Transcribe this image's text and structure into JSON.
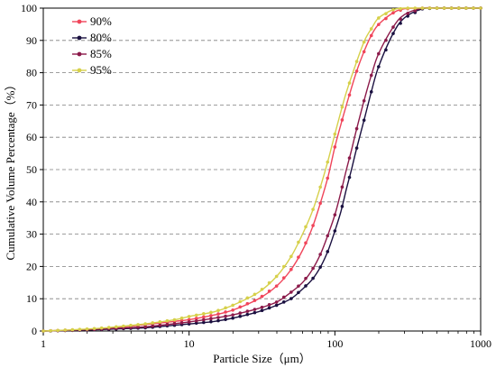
{
  "chart_data": {
    "type": "line",
    "title": "",
    "xlabel": "Particle Size（μm）",
    "ylabel": "Cumulative Volume Percentage（%）",
    "xscale": "log",
    "xlim": [
      1,
      1000
    ],
    "ylim": [
      0,
      100
    ],
    "xticks": [
      "1",
      "10",
      "100",
      "1000"
    ],
    "yticks": [
      "0",
      "10",
      "20",
      "30",
      "40",
      "50",
      "60",
      "70",
      "80",
      "90",
      "100"
    ],
    "grid": "horizontal dashed",
    "legend_position": "top-left",
    "series": [
      {
        "name": "90%",
        "color": "#f0455a",
        "x": [
          1,
          2,
          3,
          5,
          8,
          10,
          15,
          20,
          30,
          40,
          50,
          60,
          70,
          80,
          90,
          100,
          110,
          120,
          140,
          160,
          180,
          200,
          250,
          300,
          400,
          500,
          700,
          1000
        ],
        "y": [
          0,
          0.5,
          1,
          2,
          3,
          3.5,
          5,
          6.5,
          10,
          14,
          19,
          25,
          32,
          40,
          48,
          57,
          64,
          70,
          80,
          87,
          92,
          95,
          98.5,
          99.8,
          100,
          100,
          100,
          100
        ]
      },
      {
        "name": "80%",
        "color": "#1a1040",
        "x": [
          1,
          2,
          3,
          5,
          8,
          10,
          15,
          20,
          30,
          40,
          50,
          60,
          70,
          80,
          90,
          100,
          110,
          120,
          130,
          140,
          160,
          180,
          200,
          250,
          300,
          400,
          500,
          700,
          1000
        ],
        "y": [
          0,
          0.3,
          0.6,
          1,
          1.8,
          2.2,
          3,
          4,
          6,
          8,
          10,
          13,
          16,
          20,
          25,
          31,
          37,
          44,
          50,
          56,
          66,
          75,
          82,
          92,
          97,
          99.8,
          100,
          100,
          100
        ]
      },
      {
        "name": "85%",
        "color": "#8b1a4a",
        "x": [
          1,
          2,
          3,
          5,
          8,
          10,
          15,
          20,
          30,
          40,
          50,
          60,
          70,
          80,
          90,
          100,
          110,
          120,
          130,
          140,
          160,
          180,
          200,
          250,
          300,
          400,
          500,
          700,
          1000
        ],
        "y": [
          0,
          0.4,
          0.8,
          1.3,
          2.3,
          2.8,
          4,
          5,
          7,
          9,
          12,
          15,
          19,
          24,
          30,
          36,
          43,
          50,
          56,
          62,
          72,
          80,
          86,
          94,
          98,
          100,
          100,
          100,
          100
        ]
      },
      {
        "name": "95%",
        "color": "#d6d04a",
        "x": [
          1,
          2,
          3,
          5,
          8,
          10,
          15,
          20,
          30,
          40,
          50,
          60,
          70,
          80,
          90,
          100,
          110,
          120,
          140,
          160,
          180,
          200,
          250,
          300,
          400,
          500,
          700,
          1000
        ],
        "y": [
          0,
          0.6,
          1.2,
          2.2,
          3.5,
          4.5,
          6,
          8,
          12,
          17,
          23,
          30,
          37,
          45,
          53,
          61,
          68,
          74,
          83,
          90,
          94,
          97,
          99.5,
          100,
          100,
          100,
          100,
          100
        ]
      }
    ]
  }
}
